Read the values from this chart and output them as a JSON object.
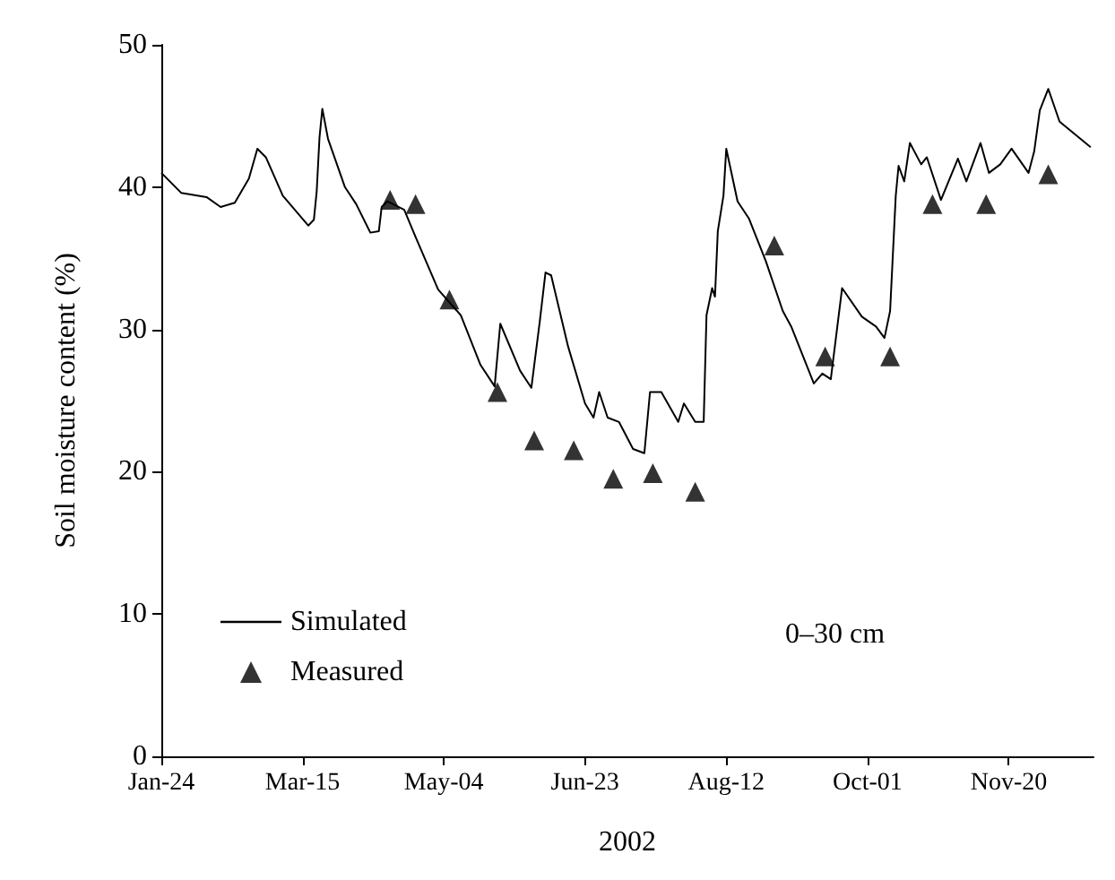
{
  "chart_data": {
    "type": "line",
    "xlabel": "2002",
    "ylabel": "Soil moisture content (%)",
    "annotations": [
      "0–30 cm"
    ],
    "xlim": [
      "2002-01-24",
      "2002-12-20"
    ],
    "ylim": [
      0,
      50
    ],
    "yticks": [
      0,
      10,
      20,
      30,
      40,
      50
    ],
    "xticks": [
      {
        "value": "2002-01-24",
        "label": "Jan-24"
      },
      {
        "value": "2002-03-15",
        "label": "Mar-15"
      },
      {
        "value": "2002-05-04",
        "label": "May-04"
      },
      {
        "value": "2002-06-23",
        "label": "Jun-23"
      },
      {
        "value": "2002-08-12",
        "label": "Aug-12"
      },
      {
        "value": "2002-10-01",
        "label": "Oct-01"
      },
      {
        "value": "2002-11-20",
        "label": "Nov-20"
      }
    ],
    "grid": false,
    "legend": "bottom left",
    "series": [
      {
        "name": "Simulated",
        "color": "#000000",
        "marker": "none",
        "line_style": "solid",
        "x": [
          "2002-01-24",
          "2002-01-31",
          "2002-02-09",
          "2002-02-14",
          "2002-02-19",
          "2002-02-24",
          "2002-02-27",
          "2002-03-02",
          "2002-03-08",
          "2002-03-17",
          "2002-03-19",
          "2002-03-20",
          "2002-03-21",
          "2002-03-22",
          "2002-03-24",
          "2002-03-30",
          "2002-04-03",
          "2002-04-08",
          "2002-04-11",
          "2002-04-12",
          "2002-04-14",
          "2002-04-20",
          "2002-04-24",
          "2002-05-02",
          "2002-05-10",
          "2002-05-17",
          "2002-05-22",
          "2002-05-24",
          "2002-05-31",
          "2002-06-04",
          "2002-06-07",
          "2002-06-09",
          "2002-06-11",
          "2002-06-17",
          "2002-06-23",
          "2002-06-26",
          "2002-06-28",
          "2002-07-01",
          "2002-07-05",
          "2002-07-10",
          "2002-07-14",
          "2002-07-16",
          "2002-07-20",
          "2002-07-26",
          "2002-07-28",
          "2002-08-01",
          "2002-08-04",
          "2002-08-05",
          "2002-08-07",
          "2002-08-08",
          "2002-08-09",
          "2002-08-11",
          "2002-08-12",
          "2002-08-16",
          "2002-08-20",
          "2002-08-26",
          "2002-09-01",
          "2002-09-04",
          "2002-09-12",
          "2002-09-15",
          "2002-09-18",
          "2002-09-22",
          "2002-09-29",
          "2002-10-04",
          "2002-10-07",
          "2002-10-09",
          "2002-10-11",
          "2002-10-12",
          "2002-10-14",
          "2002-10-16",
          "2002-10-20",
          "2002-10-22",
          "2002-10-27",
          "2002-11-02",
          "2002-11-05",
          "2002-11-10",
          "2002-11-13",
          "2002-11-17",
          "2002-11-21",
          "2002-11-27",
          "2002-11-29",
          "2002-12-01",
          "2002-12-04",
          "2002-12-08",
          "2002-12-19"
        ],
        "values": [
          41,
          39.6,
          39.3,
          38.6,
          38.9,
          40.6,
          42.7,
          42.1,
          39.4,
          37.3,
          37.7,
          39.7,
          43.5,
          45.5,
          43.4,
          40,
          38.8,
          36.8,
          36.9,
          38.6,
          39,
          38.4,
          36.5,
          32.8,
          31,
          27.5,
          26,
          30.4,
          27.1,
          25.9,
          30.6,
          34,
          33.8,
          28.8,
          24.8,
          23.8,
          25.6,
          23.8,
          23.5,
          21.6,
          21.3,
          25.6,
          25.6,
          23.5,
          24.8,
          23.5,
          23.5,
          31,
          32.9,
          32.3,
          36.9,
          39.4,
          42.7,
          39,
          37.8,
          34.8,
          31.3,
          30.2,
          26.2,
          26.9,
          26.5,
          32.9,
          30.9,
          30.2,
          29.4,
          31.3,
          39.4,
          41.5,
          40.4,
          43.1,
          41.6,
          42.1,
          39.1,
          42,
          40.4,
          43.1,
          41,
          41.6,
          42.7,
          41,
          42.5,
          45.4,
          46.9,
          44.6,
          42.8
        ]
      },
      {
        "name": "Measured",
        "type": "scatter",
        "color": "#000000",
        "marker": "triangle",
        "x": [
          "2002-04-15",
          "2002-04-24",
          "2002-05-06",
          "2002-05-23",
          "2002-06-05",
          "2002-06-19",
          "2002-07-03",
          "2002-07-17",
          "2002-08-01",
          "2002-08-29",
          "2002-09-16",
          "2002-10-09",
          "2002-10-24",
          "2002-11-12",
          "2002-12-04"
        ],
        "values": [
          39.1,
          38.8,
          32.1,
          25.6,
          22.2,
          21.5,
          19.5,
          19.9,
          18.6,
          35.9,
          28.1,
          28.1,
          38.8,
          38.8,
          40.9
        ]
      }
    ]
  }
}
